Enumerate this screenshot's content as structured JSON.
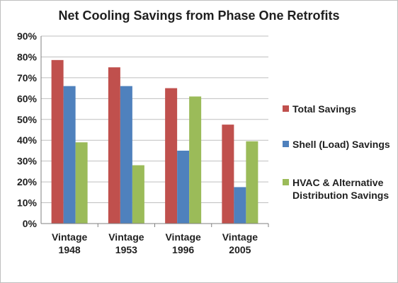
{
  "chart_data": {
    "type": "bar",
    "title": "Net Cooling Savings from Phase One Retrofits",
    "categories": [
      [
        "Vintage",
        "1948"
      ],
      [
        "Vintage",
        "1953"
      ],
      [
        "Vintage",
        "1996"
      ],
      [
        "Vintage",
        "2005"
      ]
    ],
    "ylim": [
      0,
      90
    ],
    "y_ticks": [
      "0%",
      "10%",
      "20%",
      "30%",
      "40%",
      "50%",
      "60%",
      "70%",
      "80%",
      "90%"
    ],
    "grid": true,
    "legend_position": "right",
    "series": [
      {
        "name": "Total Savings",
        "color": "#c0504d",
        "values": [
          78.5,
          75,
          65,
          47.5
        ]
      },
      {
        "name": "Shell (Load) Savings",
        "color": "#4f81bd",
        "values": [
          66,
          66,
          35,
          17.5
        ]
      },
      {
        "name": "HVAC & Alternative Distribution Savings",
        "color": "#9bbb59",
        "values": [
          39,
          28,
          61,
          39.5
        ]
      }
    ]
  }
}
